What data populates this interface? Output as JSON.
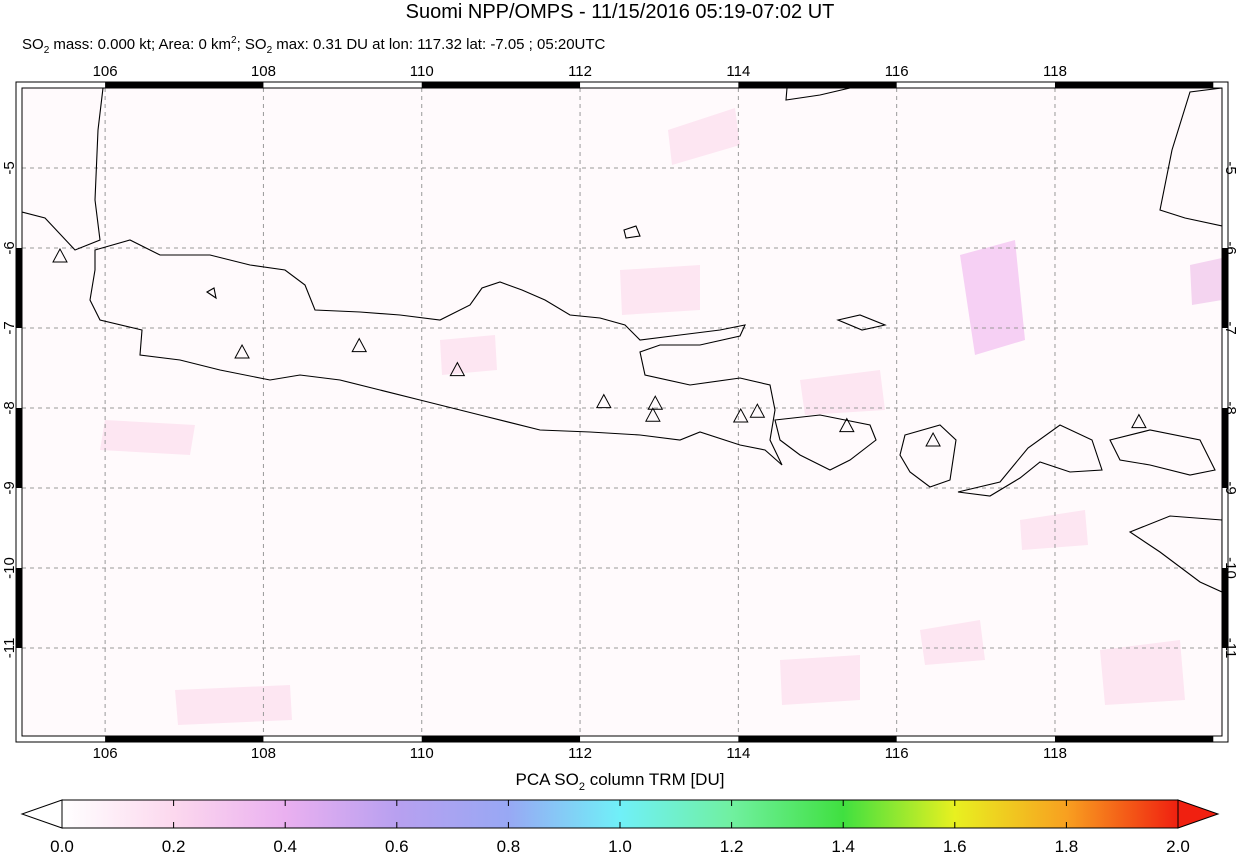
{
  "title": "Suomi NPP/OMPS - 11/15/2016 05:19-07:02 UT",
  "subtitle": [
    "SO",
    "2",
    " mass: 0.000 kt; Area: 0 km",
    "2",
    "; SO",
    "2",
    " max: 0.31 DU at lon: 117.32 lat: -7.05 ; 05:20UTC"
  ],
  "map": {
    "xlim": [
      104.95,
      120.11
    ],
    "ylim": [
      -12.1,
      -4
    ],
    "xticks": [
      106,
      108,
      110,
      112,
      114,
      116,
      118
    ],
    "yticks": [
      -5,
      -6,
      -7,
      -8,
      -9,
      -10,
      -11
    ],
    "volcanoes": [
      [
        105.43,
        -6.1
      ],
      [
        107.73,
        -7.3
      ],
      [
        109.21,
        -7.22
      ],
      [
        110.45,
        -7.52
      ],
      [
        112.3,
        -7.92
      ],
      [
        112.95,
        -7.94
      ],
      [
        112.92,
        -8.09
      ],
      [
        114.03,
        -8.1
      ],
      [
        114.24,
        -8.04
      ],
      [
        115.37,
        -8.22
      ],
      [
        116.46,
        -8.4
      ],
      [
        119.06,
        -8.17
      ]
    ]
  },
  "colorbar": {
    "label": [
      "PCA SO",
      "2",
      " column TRM [DU]"
    ],
    "lim": [
      0,
      2
    ],
    "ticks": [
      {
        "value": 0,
        "label": "0.0"
      },
      {
        "value": 0.2,
        "label": "0.2"
      },
      {
        "value": 0.4,
        "label": "0.4"
      },
      {
        "value": 0.6,
        "label": "0.6"
      },
      {
        "value": 0.8,
        "label": "0.8"
      },
      {
        "value": 1,
        "label": "1.0"
      },
      {
        "value": 1.2,
        "label": "1.2"
      },
      {
        "value": 1.4,
        "label": "1.4"
      },
      {
        "value": 1.6,
        "label": "1.6"
      },
      {
        "value": 1.8,
        "label": "1.8"
      },
      {
        "value": 2,
        "label": "2.0"
      }
    ]
  }
}
